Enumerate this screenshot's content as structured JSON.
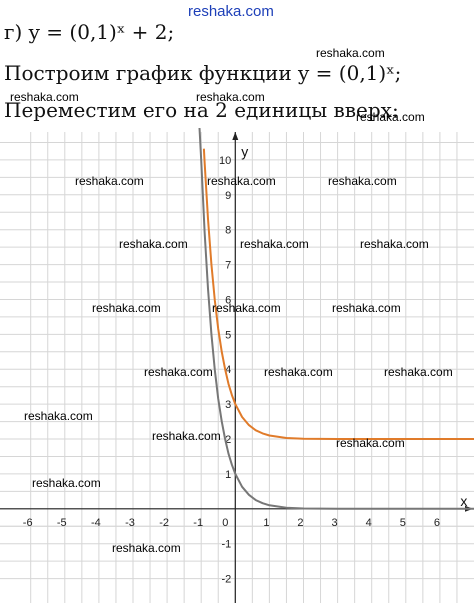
{
  "text": {
    "line1": "г) y = (0,1)ˣ + 2;",
    "line2": "Построим график функции y = (0,1)ˣ;",
    "line3": "Переместим его на 2 единицы вверх:"
  },
  "watermarks": [
    "reshaka.com",
    "reshaka.com",
    "reshaka.com",
    "reshaka.com",
    "reshaka.com",
    "reshaka.com",
    "reshaka.com",
    "reshaka.com",
    "reshaka.com",
    "reshaka.com",
    "reshaka.com",
    "reshaka.com",
    "reshaka.com",
    "reshaka.com",
    "reshaka.com",
    "reshaka.com",
    "reshaka.com",
    "reshaka.com",
    "reshaka.com",
    "reshaka.com",
    "reshaka.com",
    "reshaka.com"
  ],
  "colors": {
    "base_curve": "#777777",
    "shifted_curve": "#e07b2a",
    "grid": "#d6d6d6",
    "axis": "#222222"
  },
  "chart_data": {
    "type": "line",
    "xlabel": "x",
    "ylabel": "y",
    "xlim": [
      -6.9,
      7
    ],
    "ylim": [
      -2.7,
      10.8
    ],
    "grid": true,
    "x_ticks": [
      "-6",
      "-5",
      "-4",
      "-3",
      "-2",
      "-1",
      "0",
      "1",
      "2",
      "3",
      "4",
      "5",
      "6"
    ],
    "y_ticks": [
      "10",
      "9",
      "8",
      "7",
      "6",
      "5",
      "4",
      "3",
      "2",
      "1",
      "-1",
      "-2"
    ],
    "series": [
      {
        "x": [
          -1.05,
          -1,
          -0.9,
          -0.8,
          -0.7,
          -0.6,
          -0.5,
          -0.4,
          -0.3,
          -0.2,
          -0.1,
          0,
          0.2,
          0.4,
          0.6,
          0.8,
          1,
          1.5,
          2,
          3,
          4,
          5,
          6,
          7
        ],
        "values": [
          11.2,
          10,
          7.94,
          6.31,
          5.01,
          3.98,
          3.16,
          2.51,
          2.0,
          1.58,
          1.26,
          1,
          0.63,
          0.4,
          0.25,
          0.16,
          0.1,
          0.03,
          0.01,
          0,
          0,
          0,
          0,
          0
        ]
      },
      {
        "x": [
          -0.92,
          -0.9,
          -0.8,
          -0.7,
          -0.6,
          -0.5,
          -0.4,
          -0.3,
          -0.2,
          -0.1,
          0,
          0.2,
          0.4,
          0.6,
          0.8,
          1,
          1.5,
          2,
          3,
          4,
          5,
          6,
          7
        ],
        "values": [
          10.32,
          9.94,
          8.31,
          7.01,
          5.98,
          5.16,
          4.51,
          4.0,
          3.58,
          3.26,
          3,
          2.63,
          2.4,
          2.25,
          2.16,
          2.1,
          2.03,
          2.01,
          2,
          2,
          2,
          2,
          2
        ]
      }
    ]
  }
}
